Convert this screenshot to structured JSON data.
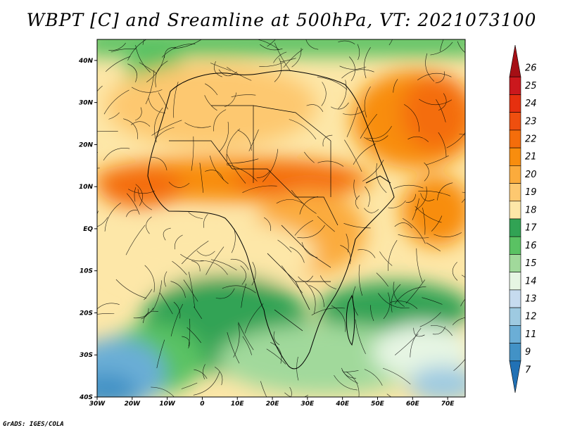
{
  "title": "WBPT [C] and Sreamline at 500hPa, VT: 2021073100",
  "credit": "GrADS: IGES/COLA",
  "map": {
    "lon_range": [
      -30,
      75
    ],
    "lat_range": [
      -40,
      45
    ],
    "lat_ticks": [
      {
        "value": 40,
        "label": "40N"
      },
      {
        "value": 30,
        "label": "30N"
      },
      {
        "value": 20,
        "label": "20N"
      },
      {
        "value": 10,
        "label": "10N"
      },
      {
        "value": 0,
        "label": "EQ"
      },
      {
        "value": -10,
        "label": "10S"
      },
      {
        "value": -20,
        "label": "20S"
      },
      {
        "value": -30,
        "label": "30S"
      },
      {
        "value": -40,
        "label": "40S"
      }
    ],
    "lon_ticks": [
      {
        "value": -30,
        "label": "30W"
      },
      {
        "value": -20,
        "label": "20W"
      },
      {
        "value": -10,
        "label": "10W"
      },
      {
        "value": 0,
        "label": "0"
      },
      {
        "value": 10,
        "label": "10E"
      },
      {
        "value": 20,
        "label": "20E"
      },
      {
        "value": 30,
        "label": "30E"
      },
      {
        "value": 40,
        "label": "40E"
      },
      {
        "value": 50,
        "label": "50E"
      },
      {
        "value": 60,
        "label": "60E"
      },
      {
        "value": 70,
        "label": "70E"
      }
    ]
  },
  "colorbar": {
    "labels": [
      "26",
      "25",
      "24",
      "23",
      "22",
      "21",
      "20",
      "19",
      "18",
      "17",
      "16",
      "15",
      "14",
      "13",
      "12",
      "11",
      "9",
      "7"
    ],
    "colors": [
      "#a50f15",
      "#cb181d",
      "#e6300f",
      "#ef4f0f",
      "#f46d0b",
      "#f88d0e",
      "#fbab3c",
      "#fdc870",
      "#fde7a8",
      "#31a354",
      "#5ac263",
      "#a1d99b",
      "#e6f5e3",
      "#c6dbef",
      "#9ecae1",
      "#6baed6",
      "#4292c6",
      "#2171b5"
    ]
  }
}
